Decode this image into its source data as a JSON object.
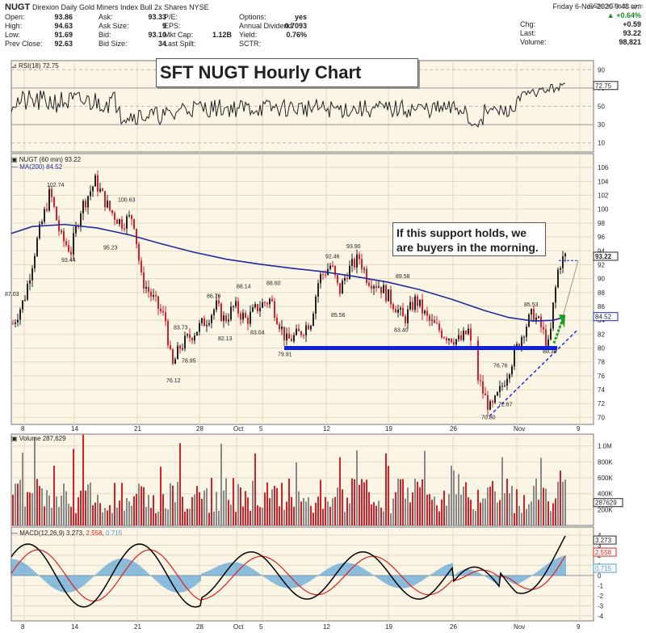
{
  "header": {
    "ticker": "NUGT",
    "full_name": "Direxion Daily Gold Miners Index Bull 2x Shares",
    "exchange": "NYSE",
    "date": "Friday  6-Nov-2020  9:48 am",
    "watermark": "@StockCharts.com",
    "quote_left": [
      {
        "label": "Open:",
        "value": "93.86"
      },
      {
        "label": "High:",
        "value": "94.63"
      },
      {
        "label": "Low:",
        "value": "91.69"
      },
      {
        "label": "Prev Close:",
        "value": "92.63"
      }
    ],
    "quote_mid": [
      {
        "label": "Ask:",
        "value": "93.33"
      },
      {
        "label": "Ask Size:",
        "value": "9"
      },
      {
        "label": "Bid:",
        "value": "93.10"
      },
      {
        "label": "Bid Size:",
        "value": "34"
      }
    ],
    "quote_mid2": [
      {
        "label": "P/E:",
        "value": ""
      },
      {
        "label": "EPS:",
        "value": ""
      },
      {
        "label": "Mkt Cap:",
        "value": "1.12B"
      },
      {
        "label": "Last Spilt:",
        "value": ""
      }
    ],
    "quote_right": [
      {
        "label": "Options:",
        "value": "yes"
      },
      {
        "label": "Annual Dividend:",
        "value": "0.7093"
      },
      {
        "label": "Yield:",
        "value": "0.76%"
      },
      {
        "label": "SCTR:",
        "value": ""
      }
    ],
    "change_pct": "+0.64%",
    "chg_label": "Chg:",
    "chg": "+0.59",
    "last_label": "Last:",
    "last": "93.22",
    "volume_label": "Volume:",
    "volume": "98,821"
  },
  "title_box": "SFT NUGT Hourly Chart",
  "callout_text": "If this support holds, we are buyers in the morning.",
  "rsi": {
    "label": "RSI(18) 72.75",
    "value_tag": "72.75",
    "levels": [
      90,
      70,
      50,
      30,
      10
    ]
  },
  "price": {
    "label": "NUGT (60 min) 93.22",
    "ma_label": "MA(200) 84.52",
    "last_tag": "93.22",
    "ma_tag": "84.52"
  },
  "volume_panel": {
    "label": "Volume 287,629",
    "tag": "287629",
    "levels": [
      "1.0M",
      "800K",
      "600K",
      "400K",
      "200K"
    ]
  },
  "macd": {
    "label": "MACD(12,26,9)",
    "v1": "3.273",
    "v2": "2.558",
    "v3": "0.715",
    "tags": [
      "3.273",
      "2.558",
      "0.715"
    ]
  },
  "x_ticks": [
    "8",
    "14",
    "21",
    "28",
    "Oct",
    "5",
    "12",
    "19",
    "26",
    "Nov",
    "9"
  ],
  "colors": {
    "bg_panel": "#fbf5e6",
    "ma": "#1f2b9e",
    "support": "#1020e0",
    "up_candle": "#222222",
    "down_candle": "#d4202b",
    "arrow": "#1aa01a",
    "macd_line": "#000000",
    "signal_line": "#e0201e",
    "hist": "#4d9bd6"
  },
  "chart_data": {
    "type": "candlestick",
    "title": "SFT NUGT Hourly Chart",
    "ylim": [
      69,
      108
    ],
    "y_ticks": [
      70,
      72,
      74,
      76,
      78,
      80,
      82,
      84,
      86,
      88,
      90,
      92,
      94,
      96,
      98,
      100,
      102,
      104,
      106
    ],
    "annotations": [
      {
        "x": "Sep 8",
        "y": 87.03,
        "label": "87.03"
      },
      {
        "x": "Sep 11",
        "y": 102.74,
        "label": "102.74"
      },
      {
        "x": "Sep 14",
        "y": 93.44,
        "label": "93.44"
      },
      {
        "x": "Sep 17",
        "y": 95.23,
        "label": "95.23"
      },
      {
        "x": "Sep 18",
        "y": 100.63,
        "label": "100.63"
      },
      {
        "x": "Sep 22",
        "y": 83.73,
        "label": "83.73"
      },
      {
        "x": "Sep 23",
        "y": 76.12,
        "label": "76.12"
      },
      {
        "x": "Sep 24",
        "y": 78.95,
        "label": "78.95"
      },
      {
        "x": "Sep 25",
        "y": 86.76,
        "label": "86.76"
      },
      {
        "x": "Sep 28",
        "y": 82.13,
        "label": "82.13"
      },
      {
        "x": "Sep 29",
        "y": 88.14,
        "label": "88.14"
      },
      {
        "x": "Sep 30",
        "y": 83.04,
        "label": "83.04"
      },
      {
        "x": "Oct 2",
        "y": 88.6,
        "label": "88.60"
      },
      {
        "x": "Oct 6",
        "y": 79.91,
        "label": "79.91"
      },
      {
        "x": "Oct 9",
        "y": 92.46,
        "label": "92.46"
      },
      {
        "x": "Oct 12",
        "y": 85.56,
        "label": "85.56"
      },
      {
        "x": "Oct 13",
        "y": 93.9,
        "label": "93.90"
      },
      {
        "x": "Oct 19",
        "y": 89.58,
        "label": "89.58"
      },
      {
        "x": "Oct 19",
        "y": 83.4,
        "label": "83.40"
      },
      {
        "x": "Oct 29",
        "y": 76.76,
        "label": "76.76"
      },
      {
        "x": "Oct 30",
        "y": 72.67,
        "label": "72.67"
      },
      {
        "x": "Oct 28",
        "y": 70.8,
        "label": "70.80"
      },
      {
        "x": "Nov 2",
        "y": 85.53,
        "label": "85.53"
      },
      {
        "x": "Nov 4",
        "y": 80.3,
        "label": "80.30"
      }
    ],
    "support_level": 80.0,
    "ma200_level_last": 84.52,
    "last_price": 93.22
  }
}
